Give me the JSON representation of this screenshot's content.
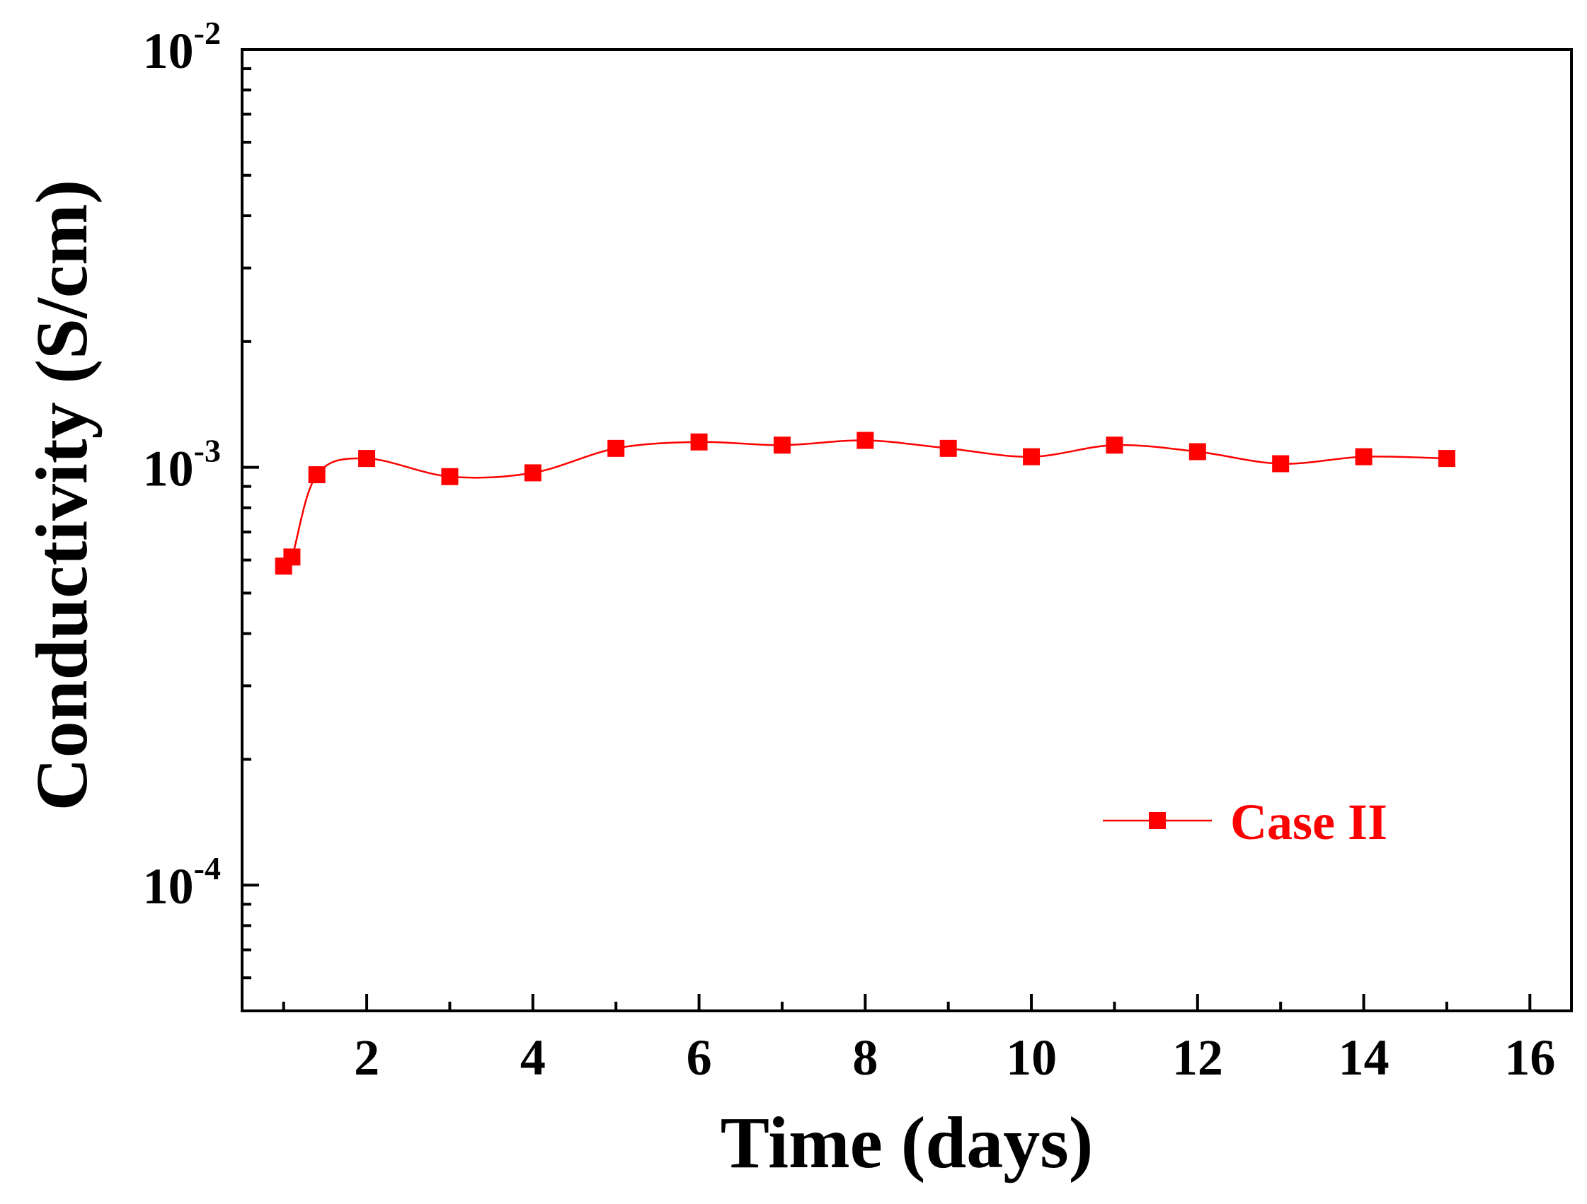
{
  "chart_data": {
    "type": "line",
    "xlabel": "Time (days)",
    "ylabel": "Conductivity (S/cm)",
    "xlim": [
      0.5,
      16.5
    ],
    "ylim": [
      5e-05,
      0.01
    ],
    "y_scale": "log",
    "x_ticks": [
      2,
      4,
      6,
      8,
      10,
      12,
      14,
      16
    ],
    "x_tick_labels": [
      "2",
      "4",
      "6",
      "8",
      "10",
      "12",
      "14",
      "16"
    ],
    "y_ticks": [
      {
        "value": 0.0001,
        "base": "10",
        "exp": "-4"
      },
      {
        "value": 0.001,
        "base": "10",
        "exp": "-3"
      },
      {
        "value": 0.01,
        "base": "10",
        "exp": "-2"
      }
    ],
    "grid": false,
    "legend_position": "lower-right",
    "series": [
      {
        "name": "Case II",
        "color": "#ff0000",
        "marker": "square",
        "line": "smooth",
        "x": [
          1.0,
          1.1,
          1.4,
          2,
          3,
          4,
          5,
          6,
          7,
          8,
          9,
          10,
          11,
          12,
          13,
          14,
          15
        ],
        "y": [
          0.00058,
          0.00061,
          0.00096,
          0.00105,
          0.00095,
          0.00097,
          0.00111,
          0.00115,
          0.00113,
          0.00116,
          0.00111,
          0.00106,
          0.00113,
          0.00109,
          0.00102,
          0.00106,
          0.00105
        ]
      }
    ]
  }
}
